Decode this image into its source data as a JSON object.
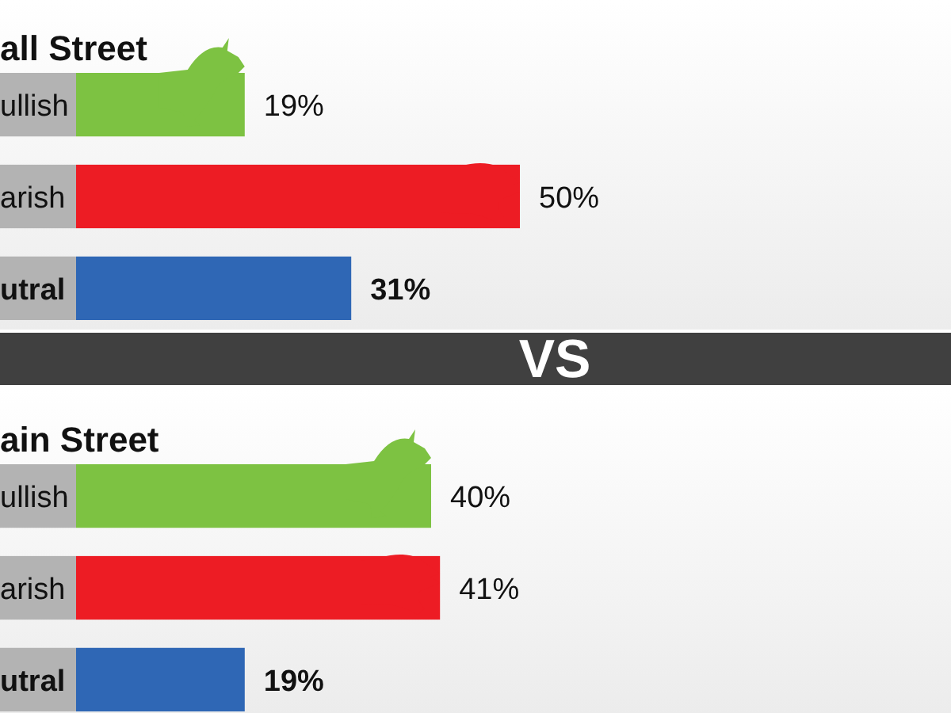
{
  "chart_data": [
    {
      "type": "bar",
      "orientation": "horizontal",
      "title": "all Street",
      "categories": [
        "ullish",
        "arish",
        "utral"
      ],
      "values": [
        19,
        50,
        31
      ],
      "colors": [
        "#7dc242",
        "#ed1c24",
        "#2f67b5"
      ],
      "value_labels": [
        "19%",
        "50%",
        "31%"
      ],
      "tick_labels": "y",
      "annotations": [
        "VS"
      ]
    },
    {
      "type": "bar",
      "orientation": "horizontal",
      "title": "ain Street",
      "categories": [
        "ullish",
        "arish",
        "utral"
      ],
      "values": [
        40,
        41,
        19
      ],
      "colors": [
        "#7dc242",
        "#ed1c24",
        "#2f67b5"
      ],
      "value_labels": [
        "40%",
        "41%",
        "19%"
      ],
      "tick_labels": "y"
    }
  ]
}
